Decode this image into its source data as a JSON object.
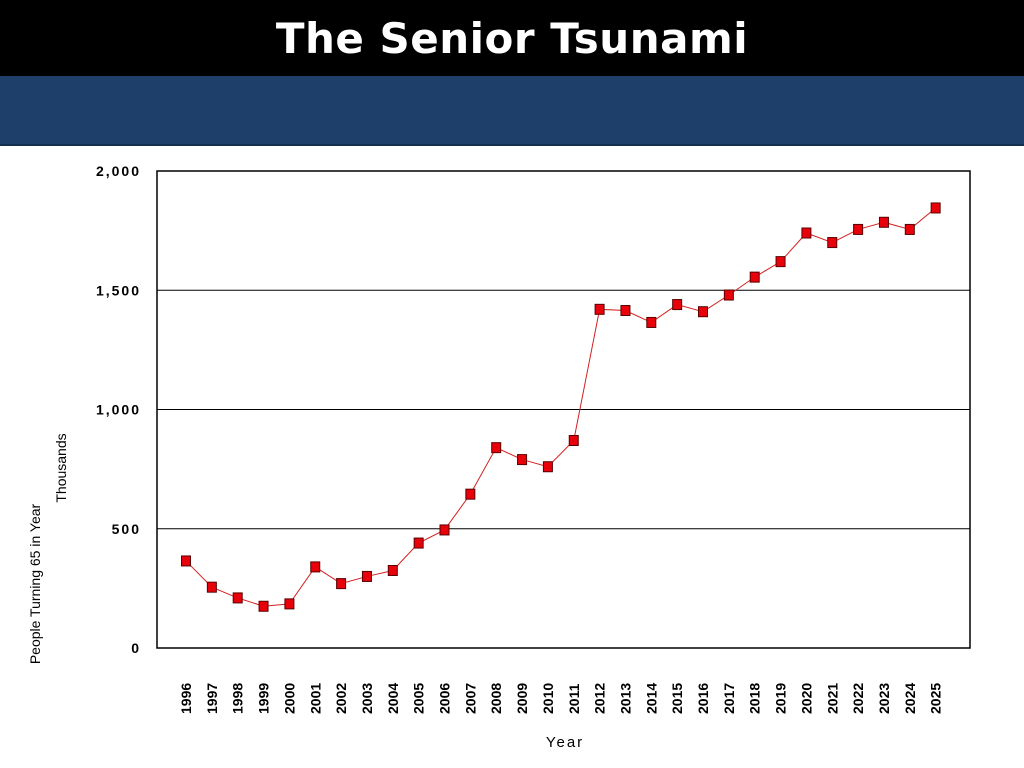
{
  "slide": {
    "title": "The Senior Tsunami"
  },
  "colors": {
    "title_bar": "#000000",
    "band": "#1f3f6b",
    "series": "#e8000b",
    "series_line": "#d42020"
  },
  "chart_data": {
    "type": "line",
    "title": "",
    "ylabel_lines": [
      "People Turning 65 in Year",
      "Thousands"
    ],
    "xlabel": "Year",
    "ylim": [
      0,
      2000
    ],
    "yticks": [
      0,
      500,
      1000,
      1500,
      2000
    ],
    "ytick_labels": [
      "0",
      "500",
      "1,000",
      "1,500",
      "2,000"
    ],
    "grid": true,
    "legend": "none",
    "x": [
      "1996",
      "1997",
      "1998",
      "1999",
      "2000",
      "2001",
      "2002",
      "2003",
      "2004",
      "2005",
      "2006",
      "2007",
      "2008",
      "2009",
      "2010",
      "2011",
      "2012",
      "2013",
      "2014",
      "2015",
      "2016",
      "2017",
      "2018",
      "2019",
      "2020",
      "2021",
      "2022",
      "2023",
      "2024",
      "2025"
    ],
    "series": [
      {
        "name": "",
        "marker": "square",
        "values": [
          365,
          255,
          210,
          175,
          185,
          340,
          270,
          300,
          325,
          440,
          495,
          645,
          840,
          790,
          760,
          870,
          1420,
          1415,
          1365,
          1440,
          1410,
          1480,
          1555,
          1620,
          1740,
          1700,
          1755,
          1785,
          1755,
          1845
        ]
      }
    ]
  }
}
